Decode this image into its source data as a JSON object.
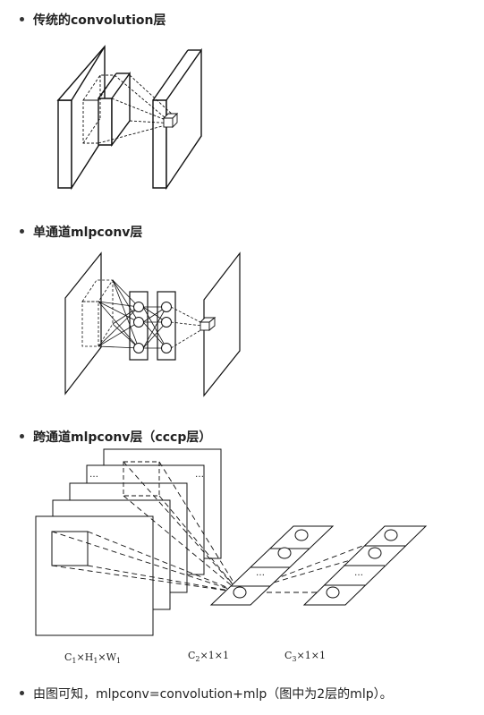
{
  "sections": [
    {
      "title": "传统的convolution层"
    },
    {
      "title": "单通道mlpconv层"
    },
    {
      "title": "跨通道mlpconv层（cccp层）"
    }
  ],
  "figure3": {
    "labels": [
      {
        "main": "C",
        "sub": "1",
        "rest": "×H",
        "sub2": "1",
        "rest2": "×W",
        "sub3": "1"
      },
      {
        "main": "C",
        "sub": "2",
        "rest": "×1×1"
      },
      {
        "main": "C",
        "sub": "3",
        "rest": "×1×1"
      }
    ],
    "ellipsis": "…"
  },
  "conclusion": "由图可知，mlpconv=convolution+mlp（图中为2层的mlp）。"
}
